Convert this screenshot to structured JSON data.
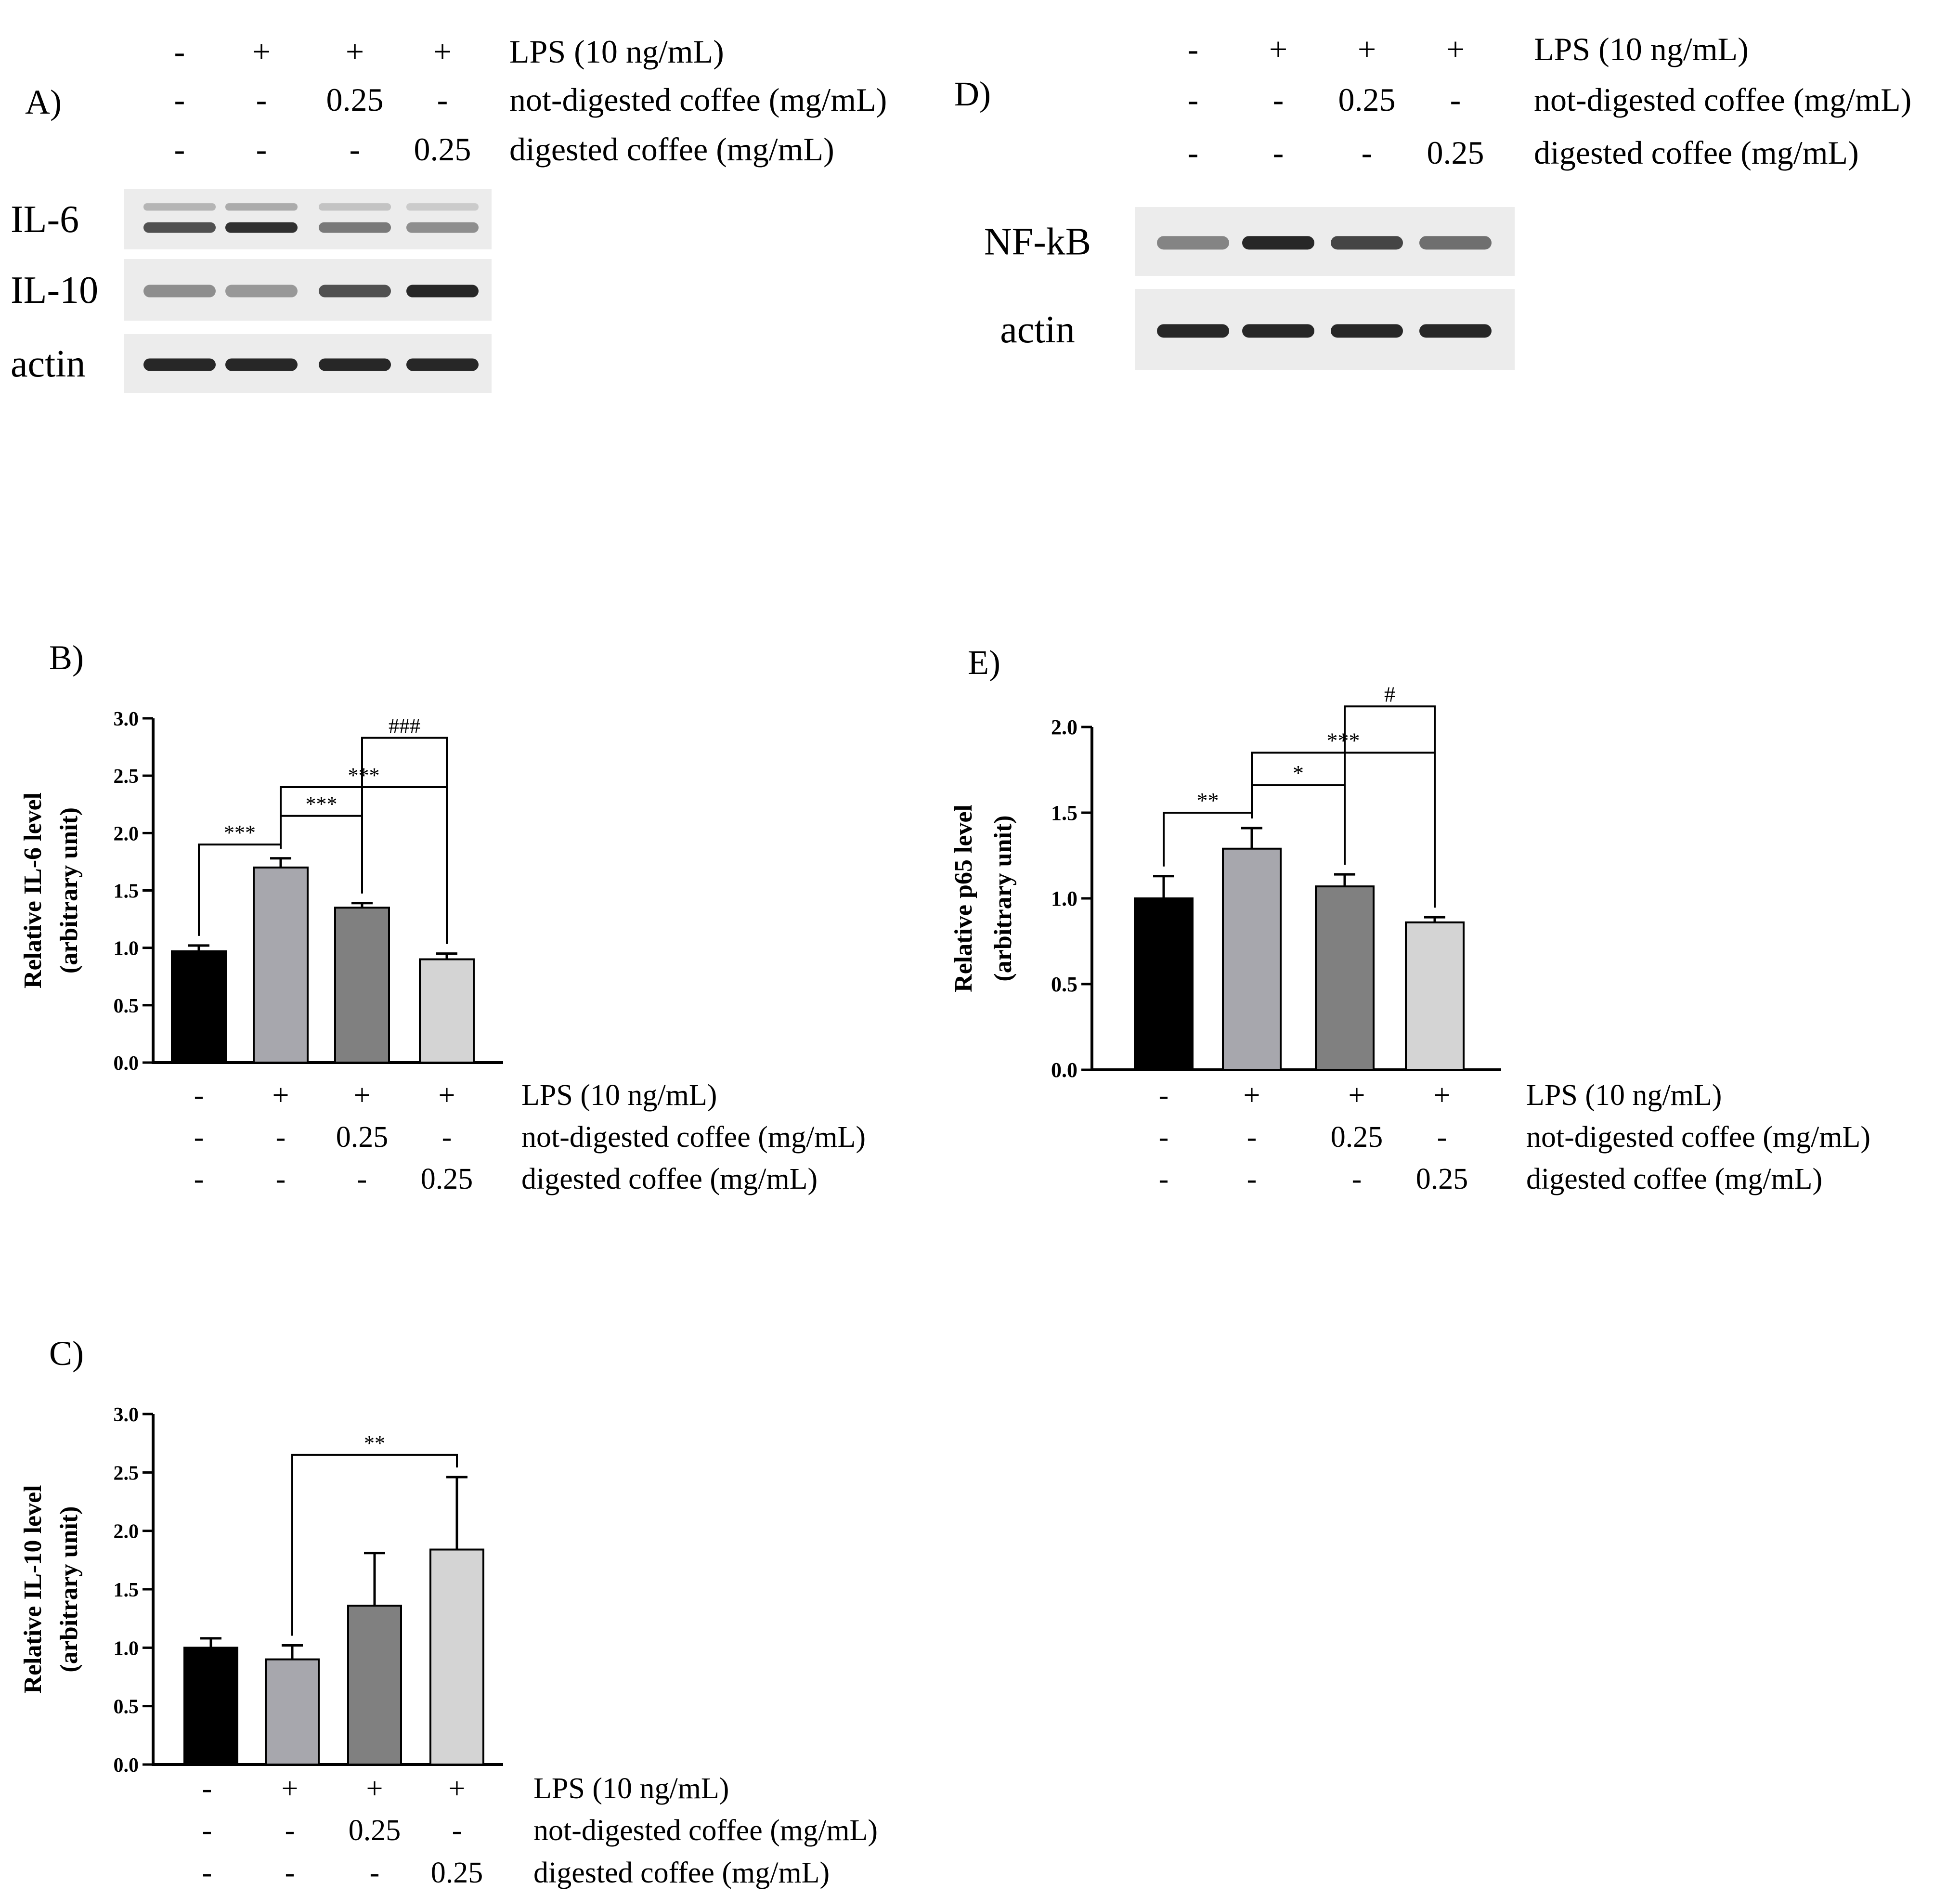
{
  "figure": {
    "treatments": {
      "rows": [
        {
          "label": "LPS (10 ng/mL)",
          "values": [
            "-",
            "+",
            "+",
            "+"
          ]
        },
        {
          "label": "not-digested coffee (mg/mL)",
          "values": [
            "-",
            "-",
            "0.25",
            "-"
          ]
        },
        {
          "label": "digested coffee (mg/mL)",
          "values": [
            "-",
            "-",
            "-",
            "0.25"
          ]
        }
      ]
    },
    "colors": {
      "group_fills": [
        "#000000",
        "#a7a7ad",
        "#808080",
        "#d4d4d4"
      ],
      "axis": "#000000",
      "blot_background": "#ececec",
      "band": "#1c1c1c"
    },
    "panels": {
      "A": {
        "letter": "A)",
        "blots": [
          {
            "label": "IL-6",
            "intensity": [
              0.75,
              0.9,
              0.55,
              0.45
            ],
            "double_band": true
          },
          {
            "label": "IL-10",
            "intensity": [
              0.45,
              0.4,
              0.75,
              0.95
            ],
            "double_band": false
          },
          {
            "label": "actin",
            "intensity": [
              0.95,
              0.95,
              0.95,
              0.95
            ],
            "double_band": false
          }
        ]
      },
      "D": {
        "letter": "D)",
        "blots": [
          {
            "label": "NF-kB",
            "intensity": [
              0.5,
              0.95,
              0.8,
              0.6
            ],
            "double_band": false
          },
          {
            "label": "actin",
            "intensity": [
              0.95,
              0.95,
              0.95,
              0.95
            ],
            "double_band": false
          }
        ]
      }
    }
  },
  "chart_data": [
    {
      "panel": "B)",
      "type": "bar",
      "ylabel": [
        "Relative IL-6 level",
        "(arbitrary unit)"
      ],
      "ylim": [
        0,
        3.0
      ],
      "yticks": [
        0.0,
        0.5,
        1.0,
        1.5,
        2.0,
        2.5,
        3.0
      ],
      "ytick_labels": [
        "0.0",
        "0.5",
        "1.0",
        "1.5",
        "2.0",
        "2.5",
        "3.0"
      ],
      "values": [
        0.97,
        1.7,
        1.35,
        0.9
      ],
      "errors": [
        0.05,
        0.08,
        0.04,
        0.05
      ],
      "significance": [
        {
          "from": 0,
          "to": 1,
          "label": "***",
          "y": 1.9
        },
        {
          "from": 1,
          "to": 2,
          "label": "***",
          "y": 2.15
        },
        {
          "from": 1,
          "to": 3,
          "label": "***",
          "y": 2.4
        },
        {
          "from": 2,
          "to": 3,
          "label": "###",
          "y": 2.83
        }
      ]
    },
    {
      "panel": "C)",
      "type": "bar",
      "ylabel": [
        "Relative IL-10 level",
        "(arbitrary unit)"
      ],
      "ylim": [
        0,
        3.0
      ],
      "yticks": [
        0.0,
        0.5,
        1.0,
        1.5,
        2.0,
        2.5,
        3.0
      ],
      "ytick_labels": [
        "0.0",
        "0.5",
        "1.0",
        "1.5",
        "2.0",
        "2.5",
        "3.0"
      ],
      "values": [
        1.0,
        0.9,
        1.36,
        1.84
      ],
      "errors": [
        0.08,
        0.12,
        0.45,
        0.62
      ],
      "significance": [
        {
          "from": 1,
          "to": 3,
          "label": "**",
          "y": 2.65
        }
      ]
    },
    {
      "panel": "E)",
      "type": "bar",
      "ylabel": [
        "Relative p65 level",
        "(arbitrary unit)"
      ],
      "ylim": [
        0,
        2.0
      ],
      "yticks": [
        0.0,
        0.5,
        1.0,
        1.5,
        2.0
      ],
      "ytick_labels": [
        "0.0",
        "0.5",
        "1.0",
        "1.5",
        "2.0"
      ],
      "values": [
        1.0,
        1.29,
        1.07,
        0.86
      ],
      "errors": [
        0.13,
        0.12,
        0.07,
        0.03
      ],
      "significance": [
        {
          "from": 0,
          "to": 1,
          "label": "**",
          "y": 1.5
        },
        {
          "from": 1,
          "to": 2,
          "label": "*",
          "y": 1.66
        },
        {
          "from": 1,
          "to": 3,
          "label": "***",
          "y": 1.85
        },
        {
          "from": 2,
          "to": 3,
          "label": "#",
          "y": 2.12
        }
      ]
    }
  ]
}
